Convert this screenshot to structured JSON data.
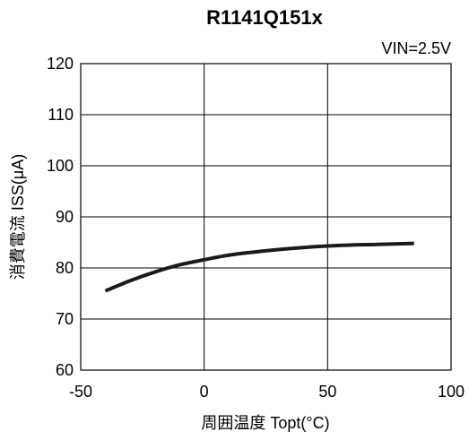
{
  "chart_data": {
    "type": "line",
    "title": "R1141Q151x",
    "condition": "VIN=2.5V",
    "xlabel": "周囲温度 Topt(°C)",
    "ylabel": "消費電流 ISS(μA)",
    "xlim": [
      -50,
      100
    ],
    "ylim": [
      60,
      120
    ],
    "x_ticks": [
      -50,
      0,
      50,
      100
    ],
    "y_ticks": [
      60,
      70,
      80,
      90,
      100,
      110,
      120
    ],
    "x_tick_labels": [
      "-50",
      "0",
      "50",
      "100"
    ],
    "y_tick_labels": [
      "60",
      "70",
      "80",
      "90",
      "100",
      "110",
      "120"
    ],
    "grid": true,
    "series": [
      {
        "x": [
          -40,
          -30,
          -20,
          -10,
          0,
          10,
          20,
          30,
          40,
          50,
          60,
          70,
          85
        ],
        "y": [
          75.5,
          77.5,
          79.2,
          80.6,
          81.6,
          82.5,
          83.1,
          83.6,
          84.0,
          84.3,
          84.5,
          84.6,
          84.8
        ]
      }
    ]
  }
}
